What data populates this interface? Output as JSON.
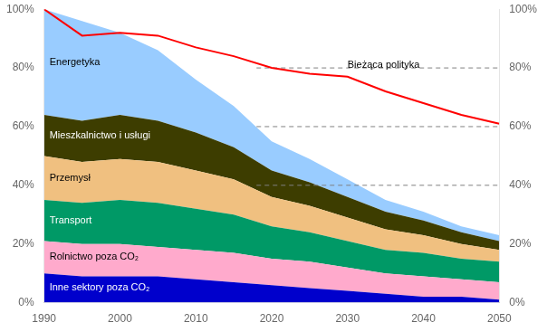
{
  "chart_data": {
    "type": "area",
    "stacked": true,
    "grid": false,
    "x": [
      1990,
      1995,
      2000,
      2005,
      2010,
      2015,
      2020,
      2025,
      2030,
      2035,
      2040,
      2045,
      2050
    ],
    "xlim": [
      1990,
      2050
    ],
    "xticks": [
      1990,
      2000,
      2010,
      2020,
      2030,
      2040,
      2050
    ],
    "ylim": [
      0,
      100
    ],
    "yticks": [
      {
        "value": 0,
        "label": "0%"
      },
      {
        "value": 20,
        "label": "20%"
      },
      {
        "value": 40,
        "label": "40%"
      },
      {
        "value": 60,
        "label": "60%"
      },
      {
        "value": 80,
        "label": "80%"
      },
      {
        "value": 100,
        "label": "100%"
      }
    ],
    "y2lim": [
      0,
      100
    ],
    "y2ticks": [
      {
        "value": 0,
        "label": "0%"
      },
      {
        "value": 20,
        "label": "20%"
      },
      {
        "value": 40,
        "label": "40%"
      },
      {
        "value": 60,
        "label": "60%"
      },
      {
        "value": 80,
        "label": "80%"
      },
      {
        "value": 100,
        "label": "100%"
      }
    ],
    "series": [
      {
        "name": "Inne sektory poza CO₂",
        "color": "#0000cc",
        "values": [
          10,
          9,
          9,
          9,
          8,
          7,
          6,
          5,
          4,
          3,
          2,
          2,
          1
        ]
      },
      {
        "name": "Rolnictwo poza CO₂",
        "color": "#ffaacc",
        "values": [
          11,
          11,
          11,
          10,
          10,
          10,
          9,
          9,
          8,
          7,
          7,
          6,
          6
        ]
      },
      {
        "name": "Transport",
        "color": "#009966",
        "values": [
          14,
          14,
          15,
          15,
          14,
          13,
          11,
          10,
          9,
          8,
          8,
          7,
          7
        ]
      },
      {
        "name": "Przemysł",
        "color": "#f0c080",
        "values": [
          15,
          14,
          14,
          14,
          13,
          12,
          10,
          9,
          8,
          7,
          6,
          5,
          4
        ]
      },
      {
        "name": "Mieszkalnictwo i usługi",
        "color": "#3d3d00",
        "values": [
          14,
          14,
          15,
          14,
          13,
          11,
          9,
          8,
          7,
          6,
          5,
          4,
          3
        ]
      },
      {
        "name": "Energetyka",
        "color": "#99ccff",
        "values": [
          36,
          34,
          28,
          24,
          18,
          14,
          10,
          8,
          6,
          4,
          3,
          2,
          2
        ]
      },
      {
        "name": "Bieżąca polityka",
        "type": "line",
        "color": "red",
        "values": [
          100,
          91,
          92,
          91,
          87,
          84,
          80,
          78,
          77,
          72,
          68,
          64,
          61
        ]
      }
    ],
    "hlines": {
      "values": [
        80,
        60,
        40
      ],
      "x": [
        2018,
        2050
      ],
      "color": "gray",
      "line_style": "dashed"
    },
    "annotations": [
      {
        "text": "Bieżąca polityka",
        "x": 2030,
        "y": 79
      }
    ]
  }
}
